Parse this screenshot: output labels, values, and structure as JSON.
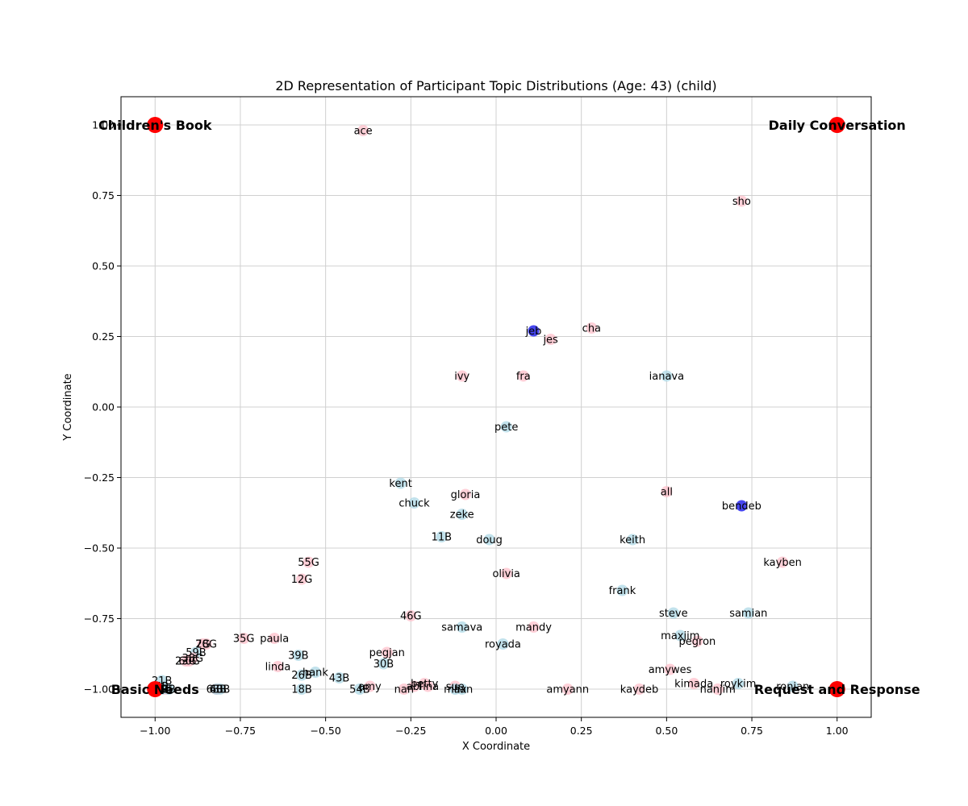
{
  "chart_data": {
    "type": "scatter",
    "title": "2D Representation of Participant Topic Distributions (Age: 43) (child)",
    "xlabel": "X Coordinate",
    "ylabel": "Y Coordinate",
    "xlim": [
      -1.1,
      1.1
    ],
    "ylim": [
      -1.1,
      1.1
    ],
    "xticks": [
      -1.0,
      -0.75,
      -0.5,
      -0.25,
      0.0,
      0.25,
      0.5,
      0.75,
      1.0
    ],
    "xtick_labels": [
      "−1.00",
      "−0.75",
      "−0.50",
      "−0.25",
      "0.00",
      "0.25",
      "0.50",
      "0.75",
      "1.00"
    ],
    "yticks": [
      -1.0,
      -0.75,
      -0.5,
      -0.25,
      0.0,
      0.25,
      0.5,
      0.75,
      1.0
    ],
    "ytick_labels": [
      "−1.00",
      "−0.75",
      "−0.50",
      "−0.25",
      "0.00",
      "0.25",
      "0.50",
      "0.75",
      "1.00"
    ],
    "grid": true,
    "colors": {
      "anchor": "#ff0000",
      "pink": "#ffc0cb",
      "lightblue": "#add8e6",
      "blue": "#3333ee"
    },
    "anchors": [
      {
        "label": "Children's Book",
        "x": -1.0,
        "y": 1.0
      },
      {
        "label": "Daily Conversation",
        "x": 1.0,
        "y": 1.0
      },
      {
        "label": "Basic Needs",
        "x": -1.0,
        "y": -1.0
      },
      {
        "label": "Request and Response",
        "x": 1.0,
        "y": -1.0
      }
    ],
    "points": [
      {
        "label": "ace",
        "x": -0.39,
        "y": 0.98,
        "color": "pink"
      },
      {
        "label": "sho",
        "x": 0.72,
        "y": 0.73,
        "color": "pink"
      },
      {
        "label": "jeb",
        "x": 0.11,
        "y": 0.27,
        "color": "blue"
      },
      {
        "label": "cha",
        "x": 0.28,
        "y": 0.28,
        "color": "pink"
      },
      {
        "label": "jes",
        "x": 0.16,
        "y": 0.24,
        "color": "pink"
      },
      {
        "label": "ivy",
        "x": -0.1,
        "y": 0.11,
        "color": "pink"
      },
      {
        "label": "fra",
        "x": 0.08,
        "y": 0.11,
        "color": "pink"
      },
      {
        "label": "ianava",
        "x": 0.5,
        "y": 0.11,
        "color": "lightblue"
      },
      {
        "label": "pete",
        "x": 0.03,
        "y": -0.07,
        "color": "lightblue"
      },
      {
        "label": "kent",
        "x": -0.28,
        "y": -0.27,
        "color": "lightblue"
      },
      {
        "label": "gloria",
        "x": -0.09,
        "y": -0.31,
        "color": "pink"
      },
      {
        "label": "all",
        "x": 0.5,
        "y": -0.3,
        "color": "pink"
      },
      {
        "label": "chuck",
        "x": -0.24,
        "y": -0.34,
        "color": "lightblue"
      },
      {
        "label": "bendeb",
        "x": 0.72,
        "y": -0.35,
        "color": "blue"
      },
      {
        "label": "zeke",
        "x": -0.1,
        "y": -0.38,
        "color": "lightblue"
      },
      {
        "label": "11B",
        "x": -0.16,
        "y": -0.46,
        "color": "lightblue"
      },
      {
        "label": "doug",
        "x": -0.02,
        "y": -0.47,
        "color": "lightblue"
      },
      {
        "label": "keith",
        "x": 0.4,
        "y": -0.47,
        "color": "lightblue"
      },
      {
        "label": "55G",
        "x": -0.55,
        "y": -0.55,
        "color": "pink"
      },
      {
        "label": "kayben",
        "x": 0.84,
        "y": -0.55,
        "color": "pink"
      },
      {
        "label": "12G",
        "x": -0.57,
        "y": -0.61,
        "color": "pink"
      },
      {
        "label": "olivia",
        "x": 0.03,
        "y": -0.59,
        "color": "pink"
      },
      {
        "label": "frank",
        "x": 0.37,
        "y": -0.65,
        "color": "lightblue"
      },
      {
        "label": "46G",
        "x": -0.25,
        "y": -0.74,
        "color": "pink"
      },
      {
        "label": "steve",
        "x": 0.52,
        "y": -0.73,
        "color": "lightblue"
      },
      {
        "label": "samian",
        "x": 0.74,
        "y": -0.73,
        "color": "lightblue"
      },
      {
        "label": "samava",
        "x": -0.1,
        "y": -0.78,
        "color": "lightblue"
      },
      {
        "label": "mandy",
        "x": 0.11,
        "y": -0.78,
        "color": "pink"
      },
      {
        "label": "maxjim",
        "x": 0.54,
        "y": -0.81,
        "color": "lightblue"
      },
      {
        "label": "pegron",
        "x": 0.59,
        "y": -0.83,
        "color": "pink"
      },
      {
        "label": "35G",
        "x": -0.74,
        "y": -0.82,
        "color": "pink"
      },
      {
        "label": "paula",
        "x": -0.65,
        "y": -0.82,
        "color": "pink"
      },
      {
        "label": "7G",
        "x": -0.86,
        "y": -0.84,
        "color": "pink"
      },
      {
        "label": "28G",
        "x": -0.85,
        "y": -0.84,
        "color": "pink"
      },
      {
        "label": "royada",
        "x": 0.02,
        "y": -0.84,
        "color": "lightblue"
      },
      {
        "label": "pegjan",
        "x": -0.32,
        "y": -0.87,
        "color": "pink"
      },
      {
        "label": "59B",
        "x": -0.88,
        "y": -0.87,
        "color": "lightblue"
      },
      {
        "label": "39B",
        "x": -0.58,
        "y": -0.88,
        "color": "lightblue"
      },
      {
        "label": "23G",
        "x": -0.91,
        "y": -0.9,
        "color": "pink"
      },
      {
        "label": "38G",
        "x": -0.89,
        "y": -0.89,
        "color": "pink"
      },
      {
        "label": "60G",
        "x": -0.9,
        "y": -0.9,
        "color": "pink"
      },
      {
        "label": "30B",
        "x": -0.33,
        "y": -0.91,
        "color": "lightblue"
      },
      {
        "label": "linda",
        "x": -0.64,
        "y": -0.92,
        "color": "pink"
      },
      {
        "label": "amywes",
        "x": 0.51,
        "y": -0.93,
        "color": "pink"
      },
      {
        "label": "26B",
        "x": -0.57,
        "y": -0.95,
        "color": "lightblue"
      },
      {
        "label": "hank",
        "x": -0.53,
        "y": -0.94,
        "color": "lightblue"
      },
      {
        "label": "43B",
        "x": -0.46,
        "y": -0.96,
        "color": "lightblue"
      },
      {
        "label": "21B",
        "x": -0.98,
        "y": -0.97,
        "color": "lightblue"
      },
      {
        "label": "betty",
        "x": -0.21,
        "y": -0.98,
        "color": "pink"
      },
      {
        "label": "sue",
        "x": -0.12,
        "y": -0.99,
        "color": "pink"
      },
      {
        "label": "kimada",
        "x": 0.58,
        "y": -0.98,
        "color": "pink"
      },
      {
        "label": "roykim",
        "x": 0.71,
        "y": -0.98,
        "color": "lightblue"
      },
      {
        "label": "ronian",
        "x": 0.87,
        "y": -0.99,
        "color": "lightblue"
      },
      {
        "label": "40B",
        "x": -0.81,
        "y": -1.0,
        "color": "lightblue"
      },
      {
        "label": "6B",
        "x": -0.82,
        "y": -1.0,
        "color": "pink"
      },
      {
        "label": "63B",
        "x": -0.82,
        "y": -1.0,
        "color": "lightblue"
      },
      {
        "label": "18B",
        "x": -0.57,
        "y": -1.0,
        "color": "lightblue"
      },
      {
        "label": "54B",
        "x": -0.4,
        "y": -1.0,
        "color": "lightblue"
      },
      {
        "label": "amy",
        "x": -0.37,
        "y": -0.99,
        "color": "pink"
      },
      {
        "label": "nan",
        "x": -0.27,
        "y": -1.0,
        "color": "pink"
      },
      {
        "label": "abi",
        "x": -0.24,
        "y": -0.99,
        "color": "pink"
      },
      {
        "label": "Tina",
        "x": -0.2,
        "y": -0.99,
        "color": "pink"
      },
      {
        "label": "max",
        "x": -0.12,
        "y": -1.0,
        "color": "lightblue"
      },
      {
        "label": "ilian",
        "x": -0.1,
        "y": -1.0,
        "color": "lightblue"
      },
      {
        "label": "amyann",
        "x": 0.21,
        "y": -1.0,
        "color": "pink"
      },
      {
        "label": "kaydeb",
        "x": 0.42,
        "y": -1.0,
        "color": "pink"
      },
      {
        "label": "nanjim",
        "x": 0.65,
        "y": -1.0,
        "color": "pink"
      },
      {
        "label": "1G",
        "x": -0.97,
        "y": -1.0,
        "color": "pink"
      },
      {
        "label": "2B",
        "x": -0.96,
        "y": -1.0,
        "color": "lightblue"
      },
      {
        "label": "3B",
        "x": -0.98,
        "y": -1.0,
        "color": "lightblue"
      },
      {
        "label": "4G",
        "x": -0.99,
        "y": -1.0,
        "color": "pink"
      },
      {
        "label": "5B",
        "x": -0.98,
        "y": -0.99,
        "color": "lightblue"
      }
    ]
  }
}
